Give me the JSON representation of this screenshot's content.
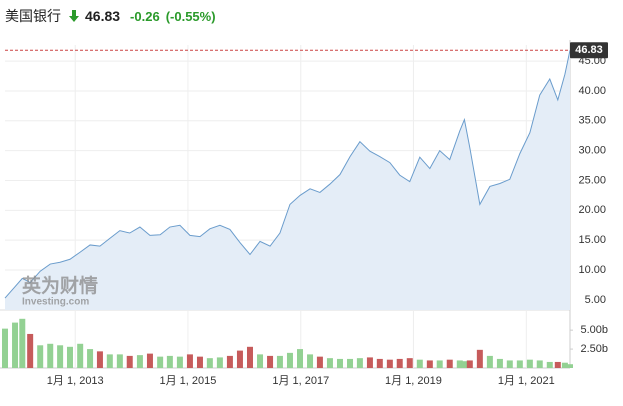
{
  "header": {
    "name": "美国银行",
    "price": 46.83,
    "change": -0.26,
    "change_percent": "(-0.55%)"
  },
  "watermark": {
    "brand": "英为财情",
    "site": "Investing.com"
  },
  "chart_data": [
    {
      "type": "line",
      "name": "price",
      "color": "#6a9ccc",
      "fill": "#e4edf7",
      "grid": true,
      "x": [
        "2011-10-04",
        "2011-12-08",
        "2012-01-24",
        "2012-03-15",
        "2012-05-19",
        "2012-07-23",
        "2012-09-25",
        "2012-11-28",
        "2013-02-02",
        "2013-04-07",
        "2013-06-10",
        "2013-08-13",
        "2013-10-17",
        "2013-12-20",
        "2014-02-24",
        "2014-04-30",
        "2014-07-05",
        "2014-09-06",
        "2014-11-10",
        "2015-01-14",
        "2015-03-20",
        "2015-05-23",
        "2015-07-27",
        "2015-09-30",
        "2015-12-04",
        "2016-02-07",
        "2016-04-12",
        "2016-06-16",
        "2016-08-19",
        "2016-10-23",
        "2016-12-27",
        "2017-03-02",
        "2017-05-05",
        "2017-07-09",
        "2017-09-12",
        "2017-11-16",
        "2018-01-19",
        "2018-03-25",
        "2018-05-28",
        "2018-08-01",
        "2018-10-04",
        "2018-12-08",
        "2019-02-11",
        "2019-04-17",
        "2019-06-20",
        "2019-08-24",
        "2019-10-28",
        "2019-11-27",
        "2020-01-01",
        "2020-03-06",
        "2020-05-10",
        "2020-07-14",
        "2020-09-16",
        "2020-11-20",
        "2021-01-24",
        "2021-03-29",
        "2021-06-02",
        "2021-07-24",
        "2021-09-08",
        "2021-10-11"
      ],
      "values": [
        5.3,
        7.2,
        8.6,
        7.9,
        9.8,
        11.0,
        11.3,
        11.8,
        13.0,
        14.2,
        14.0,
        15.3,
        16.6,
        16.2,
        17.2,
        15.8,
        15.9,
        17.2,
        17.5,
        15.8,
        15.6,
        16.9,
        17.5,
        16.8,
        14.6,
        12.6,
        14.8,
        14.0,
        16.2,
        21.0,
        22.5,
        23.6,
        23.0,
        24.4,
        26.0,
        29.0,
        31.5,
        29.9,
        29.0,
        28.0,
        25.9,
        24.8,
        28.9,
        27.0,
        30.0,
        28.5,
        33.3,
        35.2,
        30.5,
        21.0,
        24.0,
        24.5,
        25.2,
        29.5,
        33.0,
        39.3,
        42.0,
        38.5,
        42.8,
        46.83
      ],
      "xlim": [
        "2011-10-04",
        "2021-10-11"
      ],
      "xticks": [
        {
          "value": "2013-01-01",
          "label": "1月 1, 2013"
        },
        {
          "value": "2015-01-01",
          "label": "1月 1, 2015"
        },
        {
          "value": "2017-01-01",
          "label": "1月 1, 2017"
        },
        {
          "value": "2019-01-01",
          "label": "1月 1, 2019"
        },
        {
          "value": "2021-01-01",
          "label": "1月 1, 2021"
        }
      ],
      "ylim": [
        3.3,
        47.7
      ],
      "yticks": [
        {
          "value": 5,
          "label": "5.00"
        },
        {
          "value": 10,
          "label": "10.00"
        },
        {
          "value": 15,
          "label": "15.00"
        },
        {
          "value": 20,
          "label": "20.00"
        },
        {
          "value": 25,
          "label": "25.00"
        },
        {
          "value": 30,
          "label": "30.00"
        },
        {
          "value": 35,
          "label": "35.00"
        },
        {
          "value": 40,
          "label": "40.00"
        },
        {
          "value": 45,
          "label": "45.00"
        }
      ]
    },
    {
      "type": "bar",
      "name": "volume",
      "up_color": "#93d193",
      "down_color": "#c65b5b",
      "x": [
        "2011-10-04",
        "2011-12-08",
        "2012-01-24",
        "2012-03-15",
        "2012-05-19",
        "2012-07-23",
        "2012-09-25",
        "2012-11-28",
        "2013-02-02",
        "2013-04-07",
        "2013-06-10",
        "2013-08-13",
        "2013-10-17",
        "2013-12-20",
        "2014-02-24",
        "2014-04-30",
        "2014-07-05",
        "2014-09-06",
        "2014-11-10",
        "2015-01-14",
        "2015-03-20",
        "2015-05-23",
        "2015-07-27",
        "2015-09-30",
        "2015-12-04",
        "2016-02-07",
        "2016-04-12",
        "2016-06-16",
        "2016-08-19",
        "2016-10-23",
        "2016-12-27",
        "2017-03-02",
        "2017-05-05",
        "2017-07-09",
        "2017-09-12",
        "2017-11-16",
        "2018-01-19",
        "2018-03-25",
        "2018-05-28",
        "2018-08-01",
        "2018-10-04",
        "2018-12-08",
        "2019-02-11",
        "2019-04-17",
        "2019-06-20",
        "2019-08-24",
        "2019-10-28",
        "2019-11-27",
        "2020-01-01",
        "2020-03-06",
        "2020-05-10",
        "2020-07-14",
        "2020-09-16",
        "2020-11-20",
        "2021-01-24",
        "2021-03-29",
        "2021-06-02",
        "2021-07-24",
        "2021-09-08",
        "2021-10-11"
      ],
      "values": [
        5.2,
        6.0,
        6.5,
        4.5,
        3.0,
        3.2,
        3.0,
        2.8,
        3.2,
        2.5,
        2.2,
        1.8,
        1.8,
        1.6,
        1.7,
        1.9,
        1.5,
        1.6,
        1.5,
        1.8,
        1.5,
        1.3,
        1.4,
        1.6,
        2.3,
        2.8,
        1.8,
        1.6,
        1.6,
        2.0,
        2.5,
        1.8,
        1.5,
        1.3,
        1.2,
        1.2,
        1.3,
        1.4,
        1.2,
        1.1,
        1.2,
        1.3,
        1.1,
        1.0,
        1.0,
        1.1,
        1.0,
        0.9,
        1.0,
        2.4,
        1.6,
        1.2,
        1.0,
        1.0,
        1.1,
        1.0,
        0.8,
        0.8,
        0.7,
        0.5
      ],
      "ylim": [
        0,
        7.4
      ],
      "yticks": [
        {
          "value": 2.5,
          "label": "2.50b"
        },
        {
          "value": 5,
          "label": "5.00b"
        }
      ]
    }
  ]
}
